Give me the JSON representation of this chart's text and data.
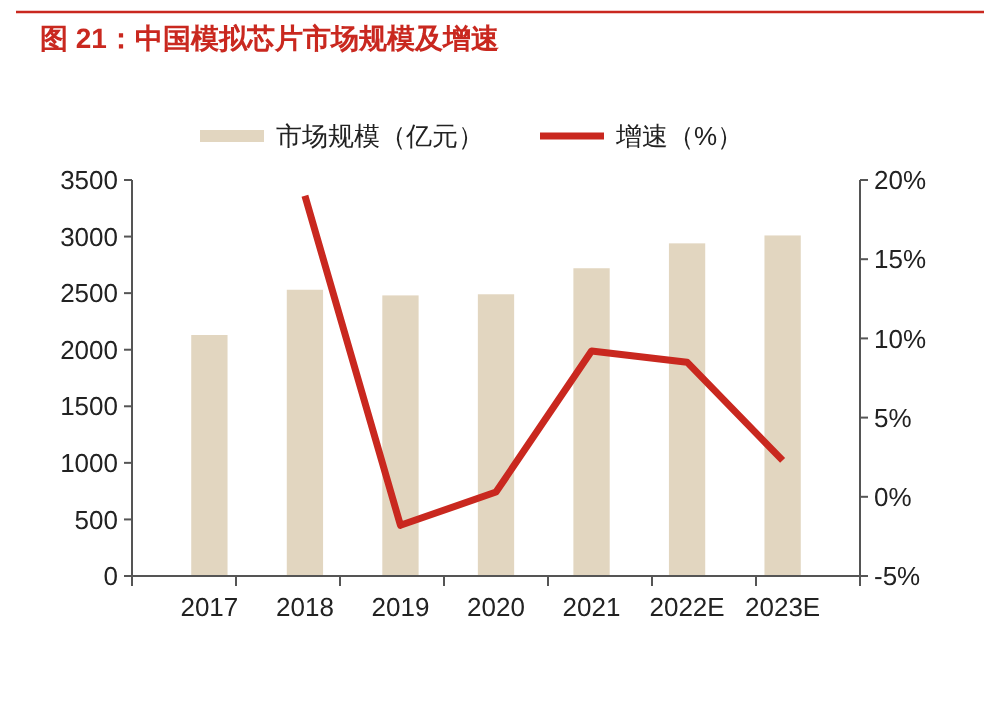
{
  "chart_data": {
    "type": "bar",
    "title": "图 21：中国模拟芯片市场规模及增速",
    "categories": [
      "2017",
      "2018",
      "2019",
      "2020",
      "2021",
      "2022E",
      "2023E"
    ],
    "series": [
      {
        "name": "市场规模（亿元）",
        "color": "#e2d6c0",
        "values": [
          2130,
          2530,
          2480,
          2490,
          2720,
          2940,
          3010
        ]
      },
      {
        "name": "增速（%）",
        "type": "line",
        "axis": "y2",
        "color": "#c9281f",
        "values": [
          null,
          19.0,
          -1.8,
          0.3,
          9.2,
          8.5,
          2.3
        ]
      }
    ],
    "ylim": [
      0,
      3500
    ],
    "yticks": [
      0,
      500,
      1000,
      1500,
      2000,
      2500,
      3000,
      3500
    ],
    "y2lim": [
      -5,
      20
    ],
    "y2ticks": [
      {
        "value": -5,
        "label": "-5%"
      },
      {
        "value": 0,
        "label": "0%"
      },
      {
        "value": 5,
        "label": "5%"
      },
      {
        "value": 10,
        "label": "10%"
      },
      {
        "value": 15,
        "label": "15%"
      },
      {
        "value": 20,
        "label": "20%"
      }
    ],
    "legend": "top",
    "grid": false
  }
}
